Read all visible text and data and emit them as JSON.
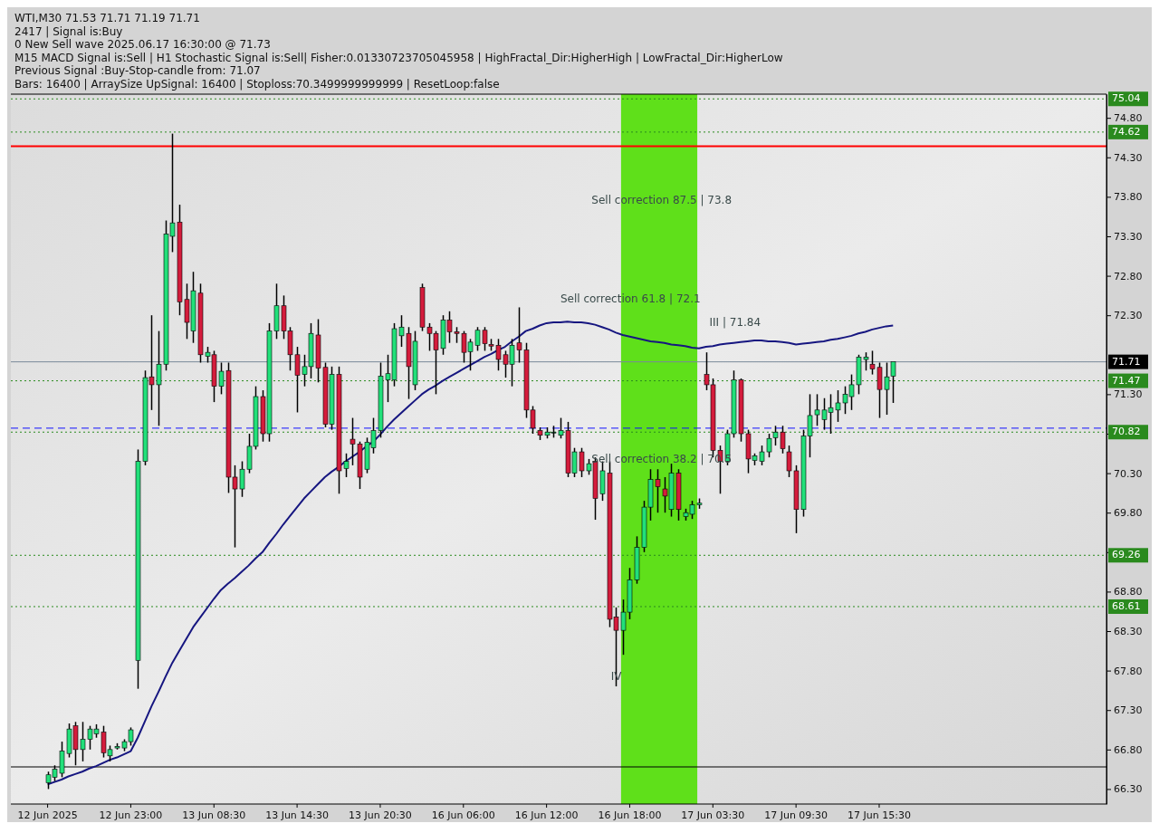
{
  "chart_data": {
    "type": "candlestick",
    "annotations": [
      "WTI,M30  71.53 71.71 71.19 71.71",
      "2417 | Signal is:Buy",
      "0 New Sell wave 2025.06.17 16:30:00 @ 71.73",
      "M15 MACD Signal is:Sell | H1 Stochastic Signal is:Sell| Fisher:0.01330723705045958 | HighFractal_Dir:HigherHigh | LowFractal_Dir:HigherLow",
      "Previous Signal :Buy-Stop-candle from: 71.07",
      "Bars: 16400 | ArraySize UpSignal: 16400 | Stoploss:70.3499999999999 | ResetLoop:false",
      "Sell correction 87.5 | 73.8",
      "Sell correction 61.8 | 72.1",
      "Sell correction 38.2 | 70.5",
      "III | 71.84",
      "IV"
    ],
    "categories": [
      "12 Jun 2025",
      null,
      null,
      null,
      null,
      null,
      null,
      null,
      null,
      null,
      null,
      null,
      "12 Jun 23:00",
      null,
      null,
      null,
      null,
      null,
      null,
      null,
      null,
      null,
      null,
      null,
      "13 Jun 08:30",
      null,
      null,
      null,
      null,
      null,
      null,
      null,
      null,
      null,
      null,
      null,
      "13 Jun 14:30",
      null,
      null,
      null,
      null,
      null,
      null,
      null,
      null,
      null,
      null,
      null,
      "13 Jun 20:30",
      null,
      null,
      null,
      null,
      null,
      null,
      null,
      null,
      null,
      null,
      null,
      "16 Jun 06:00",
      null,
      null,
      null,
      null,
      null,
      null,
      null,
      null,
      null,
      null,
      null,
      "16 Jun 12:00",
      null,
      null,
      null,
      null,
      null,
      null,
      null,
      null,
      null,
      null,
      null,
      "16 Jun 18:00",
      null,
      null,
      null,
      null,
      null,
      null,
      null,
      null,
      null,
      null,
      null,
      "17 Jun 03:30",
      null,
      null,
      null,
      null,
      null,
      null,
      null,
      null,
      null,
      null,
      null,
      "17 Jun 09:30",
      null,
      null,
      null,
      null,
      null,
      null,
      null,
      null,
      null,
      null,
      null,
      "17 Jun 15:30",
      null,
      null
    ],
    "ohlc": [
      [
        66.38,
        66.52,
        66.3,
        66.48
      ],
      [
        66.45,
        66.6,
        66.4,
        66.55
      ],
      [
        66.5,
        66.9,
        66.45,
        66.78
      ],
      [
        66.75,
        67.13,
        66.7,
        67.06
      ],
      [
        67.1,
        67.15,
        66.6,
        66.8
      ],
      [
        66.8,
        67.15,
        66.65,
        66.93
      ],
      [
        66.93,
        67.1,
        66.8,
        67.06
      ],
      [
        67.0,
        67.12,
        66.95,
        67.06
      ],
      [
        67.02,
        67.1,
        66.7,
        66.76
      ],
      [
        66.72,
        66.85,
        66.65,
        66.8
      ],
      [
        66.82,
        66.88,
        66.8,
        66.84
      ],
      [
        66.82,
        66.93,
        66.78,
        66.9
      ],
      [
        66.9,
        67.08,
        66.85,
        67.05
      ],
      [
        67.93,
        70.6,
        67.57,
        70.45
      ],
      [
        70.45,
        71.6,
        70.4,
        71.51
      ],
      [
        71.52,
        72.3,
        71.1,
        71.42
      ],
      [
        71.42,
        72.1,
        70.9,
        71.68
      ],
      [
        71.68,
        73.5,
        71.6,
        73.33
      ],
      [
        73.3,
        74.6,
        73.1,
        73.47
      ],
      [
        73.48,
        73.7,
        72.3,
        72.47
      ],
      [
        72.5,
        72.7,
        72.0,
        72.21
      ],
      [
        72.1,
        72.85,
        71.95,
        72.61
      ],
      [
        72.58,
        72.7,
        71.7,
        71.8
      ],
      [
        71.78,
        71.9,
        71.7,
        71.83
      ],
      [
        71.8,
        71.85,
        71.2,
        71.4
      ],
      [
        71.4,
        71.7,
        71.3,
        71.59
      ],
      [
        71.6,
        71.7,
        70.05,
        70.25
      ],
      [
        70.25,
        70.4,
        69.36,
        70.1
      ],
      [
        70.1,
        70.45,
        70.0,
        70.35
      ],
      [
        70.35,
        70.8,
        70.3,
        70.64
      ],
      [
        70.64,
        71.4,
        70.6,
        71.27
      ],
      [
        71.27,
        71.35,
        70.7,
        70.8
      ],
      [
        70.8,
        72.2,
        70.7,
        72.1
      ],
      [
        72.1,
        72.7,
        72.0,
        72.42
      ],
      [
        72.42,
        72.55,
        72.0,
        72.1
      ],
      [
        72.1,
        72.15,
        71.6,
        71.8
      ],
      [
        71.8,
        71.9,
        71.07,
        71.54
      ],
      [
        71.55,
        71.8,
        71.4,
        71.65
      ],
      [
        71.65,
        72.2,
        71.5,
        72.07
      ],
      [
        72.05,
        72.25,
        71.45,
        71.63
      ],
      [
        71.64,
        71.7,
        70.88,
        70.92
      ],
      [
        70.92,
        71.65,
        70.85,
        71.55
      ],
      [
        71.55,
        71.65,
        70.04,
        70.33
      ],
      [
        70.36,
        70.55,
        70.25,
        70.45
      ],
      [
        70.73,
        71.0,
        70.4,
        70.67
      ],
      [
        70.67,
        70.7,
        70.1,
        70.25
      ],
      [
        70.35,
        70.75,
        70.3,
        70.69
      ],
      [
        70.62,
        71.0,
        70.55,
        70.84
      ],
      [
        70.84,
        71.7,
        70.75,
        71.53
      ],
      [
        71.48,
        71.8,
        71.2,
        71.56
      ],
      [
        71.48,
        72.2,
        71.4,
        72.13
      ],
      [
        72.04,
        72.3,
        71.9,
        72.15
      ],
      [
        72.07,
        72.15,
        71.24,
        71.65
      ],
      [
        71.42,
        72.1,
        71.35,
        71.97
      ],
      [
        72.65,
        72.7,
        72.1,
        72.15
      ],
      [
        72.15,
        72.2,
        71.85,
        72.07
      ],
      [
        72.07,
        72.1,
        71.3,
        71.86
      ],
      [
        71.88,
        72.3,
        71.8,
        72.24
      ],
      [
        72.24,
        72.35,
        71.95,
        72.09
      ],
      [
        72.09,
        72.15,
        71.95,
        72.07
      ],
      [
        72.07,
        72.1,
        71.7,
        71.83
      ],
      [
        71.84,
        72.0,
        71.6,
        71.96
      ],
      [
        71.92,
        72.15,
        71.85,
        72.11
      ],
      [
        72.11,
        72.15,
        71.85,
        71.94
      ],
      [
        71.93,
        72.0,
        71.85,
        71.91
      ],
      [
        71.92,
        72.0,
        71.6,
        71.74
      ],
      [
        71.8,
        71.85,
        71.51,
        71.68
      ],
      [
        71.68,
        72.0,
        71.4,
        71.92
      ],
      [
        71.95,
        72.4,
        71.7,
        71.86
      ],
      [
        71.86,
        71.95,
        71.0,
        71.1
      ],
      [
        71.1,
        71.15,
        70.8,
        70.87
      ],
      [
        70.84,
        70.88,
        70.72,
        70.78
      ],
      [
        70.78,
        70.88,
        70.74,
        70.82
      ],
      [
        70.82,
        70.9,
        70.75,
        70.82
      ],
      [
        70.78,
        71.0,
        70.74,
        70.84
      ],
      [
        70.84,
        70.95,
        70.25,
        70.3
      ],
      [
        70.3,
        70.62,
        70.25,
        70.57
      ],
      [
        70.57,
        70.62,
        70.25,
        70.33
      ],
      [
        70.33,
        70.48,
        70.28,
        70.42
      ],
      [
        70.45,
        70.5,
        69.71,
        69.98
      ],
      [
        70.04,
        70.45,
        69.95,
        70.33
      ],
      [
        70.3,
        70.45,
        68.35,
        68.45
      ],
      [
        68.48,
        68.6,
        67.6,
        68.31
      ],
      [
        68.31,
        68.7,
        68.0,
        68.54
      ],
      [
        68.54,
        69.1,
        68.45,
        68.95
      ],
      [
        68.95,
        69.5,
        68.9,
        69.36
      ],
      [
        69.36,
        69.95,
        69.3,
        69.87
      ],
      [
        69.87,
        70.35,
        69.7,
        70.22
      ],
      [
        70.22,
        70.35,
        69.8,
        70.13
      ],
      [
        70.1,
        70.25,
        69.8,
        70.01
      ],
      [
        69.84,
        70.42,
        69.75,
        70.3
      ],
      [
        70.3,
        70.35,
        69.7,
        69.84
      ],
      [
        69.75,
        69.85,
        69.7,
        69.8
      ],
      [
        69.78,
        69.95,
        69.72,
        69.9
      ],
      [
        69.9,
        69.98,
        69.85,
        69.92
      ],
      [
        71.55,
        71.83,
        71.35,
        71.42
      ],
      [
        71.42,
        71.5,
        70.5,
        70.59
      ],
      [
        70.59,
        70.65,
        70.04,
        70.45
      ],
      [
        70.45,
        70.85,
        70.4,
        70.8
      ],
      [
        70.8,
        71.6,
        70.75,
        71.48
      ],
      [
        71.48,
        71.5,
        70.7,
        70.8
      ],
      [
        70.8,
        70.85,
        70.3,
        70.48
      ],
      [
        70.46,
        70.55,
        70.4,
        70.52
      ],
      [
        70.45,
        70.65,
        70.4,
        70.57
      ],
      [
        70.57,
        70.8,
        70.5,
        70.74
      ],
      [
        70.75,
        70.9,
        70.65,
        70.82
      ],
      [
        70.82,
        70.9,
        70.55,
        70.61
      ],
      [
        70.57,
        70.65,
        70.25,
        70.33
      ],
      [
        70.33,
        70.4,
        69.54,
        69.84
      ],
      [
        69.84,
        70.85,
        69.75,
        70.77
      ],
      [
        70.77,
        71.3,
        70.5,
        71.03
      ],
      [
        71.04,
        71.3,
        70.9,
        71.1
      ],
      [
        70.98,
        71.25,
        70.85,
        71.1
      ],
      [
        71.07,
        71.3,
        70.8,
        71.13
      ],
      [
        71.1,
        71.35,
        70.95,
        71.19
      ],
      [
        71.19,
        71.4,
        71.05,
        71.3
      ],
      [
        71.27,
        71.55,
        71.1,
        71.42
      ],
      [
        71.42,
        71.8,
        71.3,
        71.77
      ],
      [
        71.74,
        71.83,
        71.6,
        71.77
      ],
      [
        71.68,
        71.85,
        71.55,
        71.62
      ],
      [
        71.64,
        71.7,
        71.0,
        71.36
      ],
      [
        71.36,
        71.7,
        71.04,
        71.52
      ],
      [
        71.53,
        71.71,
        71.19,
        71.71
      ]
    ],
    "colors": [
      "#22e07a",
      "#22e07a",
      "#22e07a",
      "#22e07a",
      "#d41c3c",
      "#22e07a",
      "#22e07a",
      "#22e07a",
      "#d41c3c",
      "#22e07a",
      "#22e07a",
      "#22e07a",
      "#22e07a",
      "#22e07a",
      "#22e07a",
      "#d41c3c",
      "#22e07a",
      "#22e07a",
      "#22e07a",
      "#d41c3c",
      "#d41c3c",
      "#22e07a",
      "#d41c3c",
      "#22e07a",
      "#d41c3c",
      "#22e07a",
      "#d41c3c",
      "#d41c3c",
      "#22e07a",
      "#22e07a",
      "#22e07a",
      "#d41c3c",
      "#22e07a",
      "#22e07a",
      "#d41c3c",
      "#d41c3c",
      "#d41c3c",
      "#22e07a",
      "#22e07a",
      "#d41c3c",
      "#d41c3c",
      "#22e07a",
      "#d41c3c",
      "#22e07a",
      "#d41c3c",
      "#d41c3c",
      "#22e07a",
      "#22e07a",
      "#22e07a",
      "#22e07a",
      "#22e07a",
      "#22e07a",
      "#d41c3c",
      "#22e07a",
      "#d41c3c",
      "#d41c3c",
      "#d41c3c",
      "#22e07a",
      "#d41c3c",
      "#d41c3c",
      "#d41c3c",
      "#22e07a",
      "#22e07a",
      "#d41c3c",
      "#d41c3c",
      "#d41c3c",
      "#d41c3c",
      "#22e07a",
      "#d41c3c",
      "#d41c3c",
      "#d41c3c",
      "#d41c3c",
      "#22e07a",
      "#22e07a",
      "#22e07a",
      "#d41c3c",
      "#22e07a",
      "#d41c3c",
      "#22e07a",
      "#d41c3c",
      "#22e07a",
      "#d41c3c",
      "#d41c3c",
      "#22e07a",
      "#22e07a",
      "#22e07a",
      "#22e07a",
      "#22e07a",
      "#d41c3c",
      "#d41c3c",
      "#22e07a",
      "#d41c3c",
      "#22e07a",
      "#22e07a",
      "#22e07a",
      "#d41c3c",
      "#d41c3c",
      "#d41c3c",
      "#22e07a",
      "#22e07a",
      "#d41c3c",
      "#d41c3c",
      "#22e07a",
      "#22e07a",
      "#22e07a",
      "#22e07a",
      "#d41c3c",
      "#d41c3c",
      "#d41c3c",
      "#22e07a",
      "#22e07a",
      "#22e07a",
      "#22e07a",
      "#22e07a",
      "#22e07a",
      "#22e07a",
      "#22e07a",
      "#22e07a",
      "#22e07a",
      "#d41c3c",
      "#d41c3c",
      "#22e07a",
      "#22e07a"
    ],
    "series": [
      {
        "type": "line",
        "color": "#161680",
        "values": [
          66.36,
          66.39,
          66.42,
          66.46,
          66.49,
          66.52,
          66.56,
          66.59,
          66.63,
          66.67,
          66.7,
          66.74,
          66.78,
          66.95,
          67.15,
          67.35,
          67.53,
          67.72,
          67.9,
          68.05,
          68.2,
          68.35,
          68.47,
          68.59,
          68.71,
          68.82,
          68.9,
          68.97,
          69.05,
          69.13,
          69.22,
          69.3,
          69.42,
          69.53,
          69.65,
          69.76,
          69.87,
          69.98,
          70.07,
          70.16,
          70.25,
          70.32,
          70.38,
          70.45,
          70.51,
          70.57,
          70.64,
          70.7,
          70.79,
          70.89,
          70.98,
          71.06,
          71.14,
          71.22,
          71.3,
          71.36,
          71.41,
          71.47,
          71.52,
          71.57,
          71.62,
          71.67,
          71.72,
          71.77,
          71.81,
          71.86,
          71.9,
          71.97,
          72.03,
          72.1,
          72.13,
          72.17,
          72.2,
          72.21,
          72.21,
          72.22,
          72.21,
          72.21,
          72.2,
          72.18,
          72.15,
          72.12,
          72.08,
          72.05,
          72.03,
          72.01,
          71.99,
          71.97,
          71.96,
          71.95,
          71.93,
          71.92,
          71.91,
          71.89,
          71.88,
          71.9,
          71.91,
          71.93,
          71.94,
          71.95,
          71.96,
          71.97,
          71.98,
          71.98,
          71.97,
          71.97,
          71.96,
          71.95,
          71.93,
          71.94,
          71.95,
          71.96,
          71.97,
          71.99,
          72.0,
          72.02,
          72.04,
          72.07,
          72.09,
          72.12,
          72.14,
          72.16,
          72.17
        ]
      }
    ],
    "ylim": [
      66.11,
      75.1
    ],
    "yticks": [
      {
        "value": 66.3,
        "label": "66.30"
      },
      {
        "value": 66.8,
        "label": "66.80"
      },
      {
        "value": 67.3,
        "label": "67.30"
      },
      {
        "value": 67.8,
        "label": "67.80"
      },
      {
        "value": 68.3,
        "label": "68.30"
      },
      {
        "value": 68.8,
        "label": "68.80"
      },
      {
        "value": 69.3,
        "label": null
      },
      {
        "value": 69.8,
        "label": "69.80"
      },
      {
        "value": 70.3,
        "label": "70.30"
      },
      {
        "value": 70.8,
        "label": null
      },
      {
        "value": 71.3,
        "label": "71.30"
      },
      {
        "value": 72.3,
        "label": "72.30"
      },
      {
        "value": 72.8,
        "label": "72.80"
      },
      {
        "value": 73.3,
        "label": "73.30"
      },
      {
        "value": 73.8,
        "label": "73.80"
      },
      {
        "value": 74.3,
        "label": "74.30"
      },
      {
        "value": 74.8,
        "label": "74.80"
      }
    ],
    "ref_lines": [
      {
        "axis": "y",
        "value": 75.04,
        "label": "75.04",
        "color": "#2a8a1e",
        "line_style": "dotted"
      },
      {
        "axis": "y",
        "value": 74.62,
        "label": "74.62",
        "color": "#2a8a1e",
        "line_style": "dotted"
      },
      {
        "axis": "y",
        "value": 74.44,
        "label": null,
        "color": "#ff0000",
        "line_style": "solid"
      },
      {
        "axis": "y",
        "value": 71.71,
        "label": "71.71",
        "color": "#7a8a9a",
        "line_style": "solid"
      },
      {
        "axis": "y",
        "value": 71.47,
        "label": "71.47",
        "color": "#2a8a1e",
        "line_style": "dotted"
      },
      {
        "axis": "y",
        "value": 70.87,
        "label": null,
        "color": "#1010ff",
        "line_style": "dashed"
      },
      {
        "axis": "y",
        "value": 70.82,
        "label": "70.82",
        "color": "#2a8a1e",
        "line_style": "dotted"
      },
      {
        "axis": "y",
        "value": 69.26,
        "label": "69.26",
        "color": "#2a8a1e",
        "line_style": "dotted"
      },
      {
        "axis": "y",
        "value": 68.61,
        "label": "68.61",
        "color": "#2a8a1e",
        "line_style": "dotted"
      },
      {
        "axis": "y",
        "value": 66.58,
        "label": null,
        "color": "#000000",
        "line_style": "solid"
      }
    ]
  }
}
